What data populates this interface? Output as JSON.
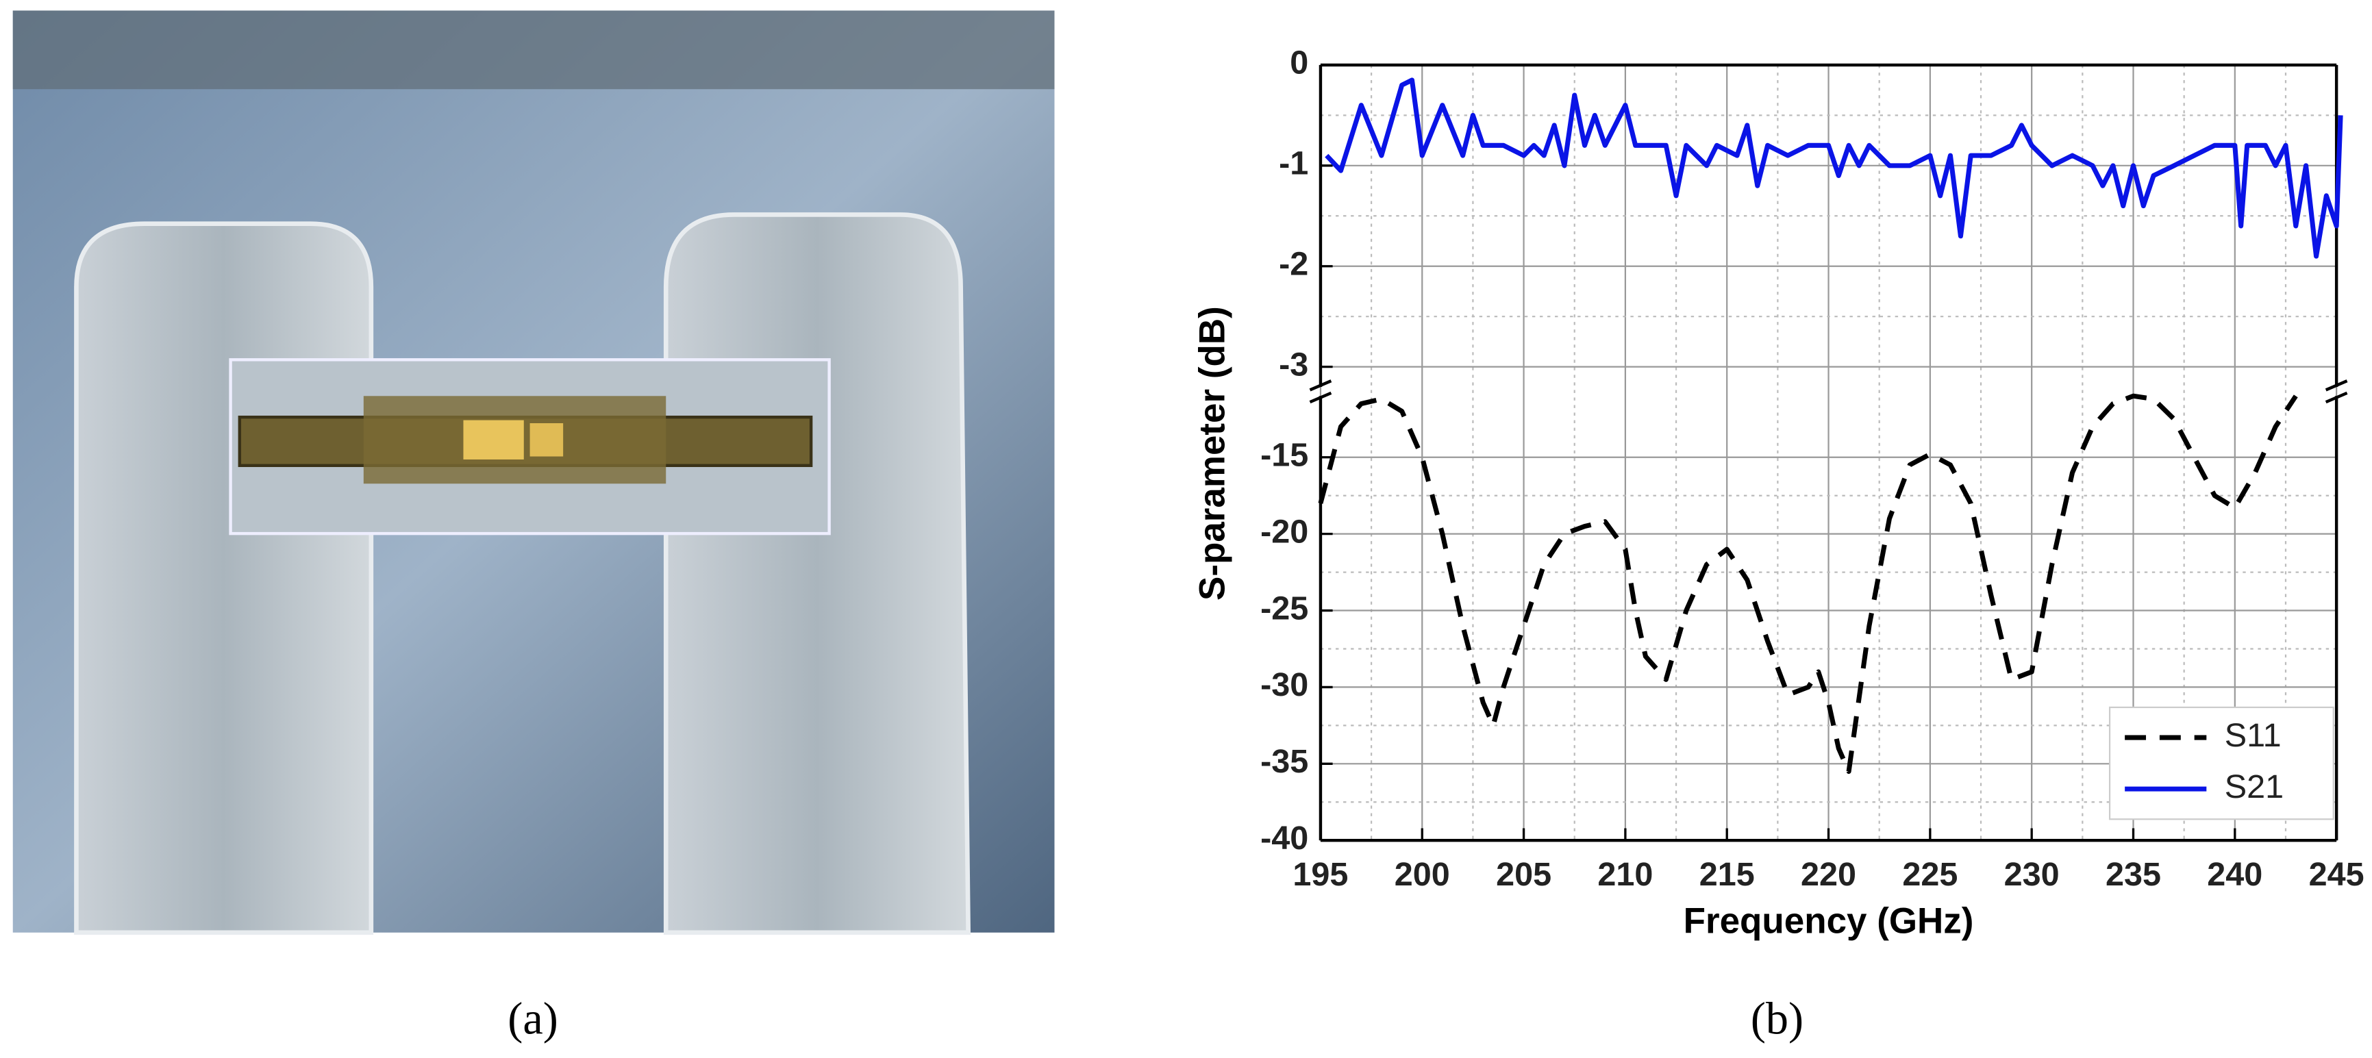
{
  "captions": {
    "a": "(a)",
    "b": "(b)"
  },
  "chart_data": {
    "type": "line",
    "xlabel": "Frequency  (GHz)",
    "ylabel": "S-parameter  (dB)",
    "xlim": [
      195,
      245
    ],
    "xticks": [
      195,
      200,
      205,
      210,
      215,
      220,
      225,
      230,
      235,
      240,
      245
    ],
    "y_panels": [
      {
        "ylim": [
          -40,
          -11
        ],
        "yticks": [
          -15,
          -20,
          -25,
          -30,
          -35,
          -40
        ]
      },
      {
        "ylim": [
          -3.2,
          0
        ],
        "yticks": [
          0,
          -1,
          -2,
          -3
        ]
      }
    ],
    "grid": true,
    "minor_grid": true,
    "legend": "lower right",
    "series": [
      {
        "name": "S11",
        "color": "#000000",
        "dashed": true,
        "panel": 0,
        "x": [
          195,
          196,
          197,
          198,
          199,
          200,
          201,
          202,
          203,
          203.5,
          204,
          205,
          206,
          207,
          208,
          209,
          210,
          210.5,
          211,
          212,
          213,
          214,
          215,
          216,
          217,
          218,
          219,
          219.5,
          220,
          220.5,
          221,
          222,
          223,
          224,
          225,
          226,
          227,
          228,
          229,
          230,
          231,
          232,
          233,
          234,
          235,
          236,
          237,
          238,
          239,
          240,
          241,
          242,
          243
        ],
        "values": [
          -18,
          -13,
          -11.5,
          -11.2,
          -12,
          -15,
          -20,
          -26,
          -31,
          -32.5,
          -30,
          -26,
          -22,
          -20,
          -19.5,
          -19.2,
          -21,
          -25,
          -28,
          -29.5,
          -25,
          -22,
          -21,
          -23,
          -27,
          -30.5,
          -30,
          -29,
          -31,
          -34,
          -35.5,
          -26,
          -19,
          -15.5,
          -14.8,
          -15.5,
          -18,
          -24,
          -29.5,
          -29,
          -22,
          -16,
          -13,
          -11.5,
          -11,
          -11.2,
          -12.5,
          -15,
          -17.5,
          -18.3,
          -16,
          -13,
          -11
        ]
      },
      {
        "name": "S21",
        "color": "#0a14e6",
        "dashed": false,
        "panel": 1,
        "x": [
          195.3,
          196,
          197,
          198,
          199,
          199.5,
          200,
          201,
          202,
          202.5,
          203,
          204,
          205,
          205.5,
          206,
          206.5,
          207,
          207.5,
          208,
          208.5,
          209,
          210,
          210.5,
          212,
          212.5,
          213,
          214,
          214.5,
          215.5,
          216,
          216.5,
          217,
          218,
          219,
          220,
          220.5,
          221,
          221.5,
          222,
          223,
          224,
          225,
          225.5,
          226,
          226.5,
          227,
          228,
          229,
          229.5,
          230,
          231,
          232,
          233,
          233.5,
          234,
          234.5,
          235,
          235.5,
          236,
          237,
          238,
          239,
          240,
          240.3,
          240.6,
          241.5,
          242,
          242.5,
          243,
          243.5,
          244,
          244.5,
          245,
          245.2
        ],
        "values": [
          -0.9,
          -1.05,
          -0.4,
          -0.9,
          -0.2,
          -0.15,
          -0.9,
          -0.4,
          -0.9,
          -0.5,
          -0.8,
          -0.8,
          -0.9,
          -0.8,
          -0.9,
          -0.6,
          -1,
          -0.3,
          -0.8,
          -0.5,
          -0.8,
          -0.4,
          -0.8,
          -0.8,
          -1.3,
          -0.8,
          -1,
          -0.8,
          -0.9,
          -0.6,
          -1.2,
          -0.8,
          -0.9,
          -0.8,
          -0.8,
          -1.1,
          -0.8,
          -1,
          -0.8,
          -1,
          -1,
          -0.9,
          -1.3,
          -0.9,
          -1.7,
          -0.9,
          -0.9,
          -0.8,
          -0.6,
          -0.8,
          -1,
          -0.9,
          -1,
          -1.2,
          -1,
          -1.4,
          -1,
          -1.4,
          -1.1,
          -1,
          -0.9,
          -0.8,
          -0.8,
          -1.6,
          -0.8,
          -0.8,
          -1,
          -0.8,
          -1.6,
          -1,
          -1.9,
          -1.3,
          -1.6,
          -0.5
        ]
      }
    ]
  }
}
